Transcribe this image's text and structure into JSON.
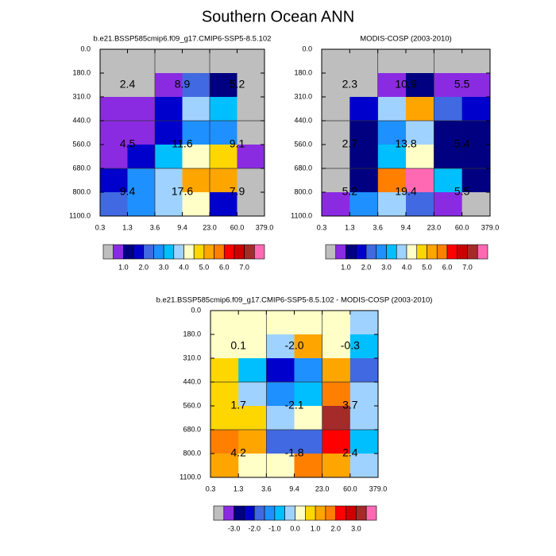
{
  "title": "Southern Ocean ANN",
  "chart_data": [
    {
      "type": "heatmap",
      "title": "b.e21.BSSP585cmip6.f09_g17.CMIP6-SSP5-8.5.102",
      "x_edges": [
        0.3,
        1.3,
        3.6,
        9.4,
        {
          "value": 23,
          "label": "23.0"
        },
        {
          "value": 60,
          "label": "60.0"
        },
        {
          "value": 379,
          "label": "379.0"
        }
      ],
      "y_edges": [
        {
          "value": 0,
          "label": "0.0"
        },
        {
          "value": 180,
          "label": "180.0"
        },
        {
          "value": 310,
          "label": "310.0"
        },
        {
          "value": 440,
          "label": "440.0"
        },
        {
          "value": 560,
          "label": "560.0"
        },
        {
          "value": 680,
          "label": "680.0"
        },
        {
          "value": 800,
          "label": "800.0"
        },
        {
          "value": 1100,
          "label": "1100.0"
        }
      ],
      "z": [
        [
          0.25,
          0.25,
          0.25,
          0.25,
          0.25,
          0.25
        ],
        [
          0.25,
          0.25,
          0.75,
          2.25,
          1.25,
          0.25
        ],
        [
          0.75,
          0.75,
          1.75,
          3.75,
          3.25,
          0.25
        ],
        [
          0.75,
          0.75,
          1.75,
          2.75,
          2.75,
          0.25
        ],
        [
          0.75,
          1.75,
          3.25,
          4.25,
          4.75,
          0.75
        ],
        [
          1.75,
          2.75,
          3.75,
          5.25,
          5.25,
          0.25
        ],
        [
          2.25,
          2.75,
          3.75,
          4.25,
          1.75,
          0.25
        ]
      ],
      "group_values": [
        [
          2.4,
          8.9,
          5.2
        ],
        [
          4.5,
          11.6,
          9.1
        ],
        [
          9.4,
          17.6,
          7.9
        ]
      ],
      "colorbar": {
        "levels": [
          0.5,
          1,
          1.5,
          2,
          2.5,
          3,
          3.5,
          4,
          4.5,
          5,
          5.5,
          6,
          6.5,
          7,
          7.5
        ],
        "colors": [
          "#bebebe",
          "#8a2be2",
          "#000080",
          "#0000cd",
          "#4169e1",
          "#1e90ff",
          "#00bfff",
          "#a0d2ff",
          "#ffffc8",
          "#ffd700",
          "#ffa500",
          "#ff7f00",
          "#ff0000",
          "#cd0000",
          "#a52a2a",
          "#ff69b4"
        ],
        "ticks": [
          {
            "value": 1,
            "label": "1.0"
          },
          {
            "value": 2,
            "label": "2.0"
          },
          {
            "value": 3,
            "label": "3.0"
          },
          {
            "value": 4,
            "label": "4.0"
          },
          {
            "value": 5,
            "label": "5.0"
          },
          {
            "value": 6,
            "label": "6.0"
          },
          {
            "value": 7,
            "label": "7.0"
          }
        ]
      }
    },
    {
      "type": "heatmap",
      "title": "MODIS-COSP (2003-2010)",
      "x_edges": [
        0.3,
        1.3,
        3.6,
        9.4,
        {
          "value": 23,
          "label": "23.0"
        },
        {
          "value": 60,
          "label": "60.0"
        },
        {
          "value": 379,
          "label": "379.0"
        }
      ],
      "y_edges": [
        {
          "value": 0,
          "label": "0.0"
        },
        {
          "value": 180,
          "label": "180.0"
        },
        {
          "value": 310,
          "label": "310.0"
        },
        {
          "value": 440,
          "label": "440.0"
        },
        {
          "value": 560,
          "label": "560.0"
        },
        {
          "value": 680,
          "label": "680.0"
        },
        {
          "value": 800,
          "label": "800.0"
        },
        {
          "value": 1100,
          "label": "1100.0"
        }
      ],
      "z": [
        [
          0.25,
          0.25,
          0.25,
          0.25,
          0.25,
          0.25
        ],
        [
          0.25,
          0.25,
          0.75,
          1.25,
          0.75,
          0.75
        ],
        [
          0.25,
          1.75,
          3.75,
          5.25,
          2.25,
          1.75
        ],
        [
          0.25,
          1.25,
          2.75,
          3.75,
          1.25,
          1.25
        ],
        [
          0.25,
          1.25,
          3.25,
          4.25,
          1.25,
          1.25
        ],
        [
          0.25,
          1.25,
          5.75,
          7.75,
          3.25,
          1.25
        ],
        [
          0.75,
          2.75,
          3.75,
          2.25,
          0.75,
          0.25
        ]
      ],
      "group_values": [
        [
          2.3,
          10.9,
          5.5
        ],
        [
          2.7,
          13.8,
          5.4
        ],
        [
          5.2,
          19.4,
          5.5
        ]
      ],
      "colorbar": {
        "levels": [
          0.5,
          1,
          1.5,
          2,
          2.5,
          3,
          3.5,
          4,
          4.5,
          5,
          5.5,
          6,
          6.5,
          7,
          7.5
        ],
        "colors": [
          "#bebebe",
          "#8a2be2",
          "#000080",
          "#0000cd",
          "#4169e1",
          "#1e90ff",
          "#00bfff",
          "#a0d2ff",
          "#ffffc8",
          "#ffd700",
          "#ffa500",
          "#ff7f00",
          "#ff0000",
          "#cd0000",
          "#a52a2a",
          "#ff69b4"
        ],
        "ticks": [
          {
            "value": 1,
            "label": "1.0"
          },
          {
            "value": 2,
            "label": "2.0"
          },
          {
            "value": 3,
            "label": "3.0"
          },
          {
            "value": 4,
            "label": "4.0"
          },
          {
            "value": 5,
            "label": "5.0"
          },
          {
            "value": 6,
            "label": "6.0"
          },
          {
            "value": 7,
            "label": "7.0"
          }
        ]
      }
    },
    {
      "type": "heatmap",
      "title": "b.e21.BSSP585cmip6.f09_g17.CMIP6-SSP5-8.5.102 - MODIS-COSP (2003-2010)",
      "x_edges": [
        0.3,
        1.3,
        3.6,
        9.4,
        {
          "value": 23,
          "label": "23.0"
        },
        {
          "value": 60,
          "label": "60.0"
        },
        {
          "value": 379,
          "label": "379.0"
        }
      ],
      "y_edges": [
        {
          "value": 0,
          "label": "0.0"
        },
        {
          "value": 180,
          "label": "180.0"
        },
        {
          "value": 310,
          "label": "310.0"
        },
        {
          "value": 440,
          "label": "440.0"
        },
        {
          "value": 560,
          "label": "560.0"
        },
        {
          "value": 680,
          "label": "680.0"
        },
        {
          "value": 800,
          "label": "800.0"
        },
        {
          "value": 1100,
          "label": "1100.0"
        }
      ],
      "z": [
        [
          0.25,
          0.25,
          0.25,
          0.25,
          0.25,
          -0.25
        ],
        [
          0.25,
          0.25,
          -0.25,
          1.25,
          0.25,
          -0.75
        ],
        [
          0.75,
          -0.75,
          -2.25,
          -1.25,
          1.25,
          -1.75
        ],
        [
          0.75,
          -0.25,
          -1.25,
          -0.75,
          1.75,
          -0.25
        ],
        [
          0.75,
          0.75,
          -0.25,
          0.25,
          3.25,
          -0.25
        ],
        [
          1.75,
          1.25,
          -1.75,
          -1.75,
          2.25,
          -0.75
        ],
        [
          1.25,
          0.25,
          0.25,
          1.75,
          1.25,
          -0.25
        ]
      ],
      "group_values": [
        [
          0.1,
          -2,
          -0.3
        ],
        [
          1.7,
          -2.1,
          3.7
        ],
        [
          4.2,
          -1.8,
          2.4
        ]
      ],
      "group_value_labels": [
        [
          "0.1",
          "-2.0",
          "-0.3"
        ],
        [
          "1.7",
          "-2.1",
          "3.7"
        ],
        [
          "4.2",
          "-1.8",
          "2.4"
        ]
      ],
      "colorbar": {
        "levels": [
          -3.5,
          -3,
          -2.5,
          -2,
          -1.5,
          -1,
          -0.5,
          0,
          0.5,
          1,
          1.5,
          2,
          2.5,
          3,
          3.5
        ],
        "colors": [
          "#bebebe",
          "#8a2be2",
          "#000080",
          "#0000cd",
          "#4169e1",
          "#1e90ff",
          "#00bfff",
          "#a0d2ff",
          "#ffffc8",
          "#ffd700",
          "#ffa500",
          "#ff7f00",
          "#ff0000",
          "#cd0000",
          "#a52a2a",
          "#ff69b4"
        ],
        "ticks": [
          {
            "value": -3,
            "label": "-3.0"
          },
          {
            "value": -2,
            "label": "-2.0"
          },
          {
            "value": -1,
            "label": "-1.0"
          },
          {
            "value": 0,
            "label": "0.0"
          },
          {
            "value": 1,
            "label": "1.0"
          },
          {
            "value": 2,
            "label": "2.0"
          },
          {
            "value": 3,
            "label": "3.0"
          }
        ]
      }
    }
  ]
}
